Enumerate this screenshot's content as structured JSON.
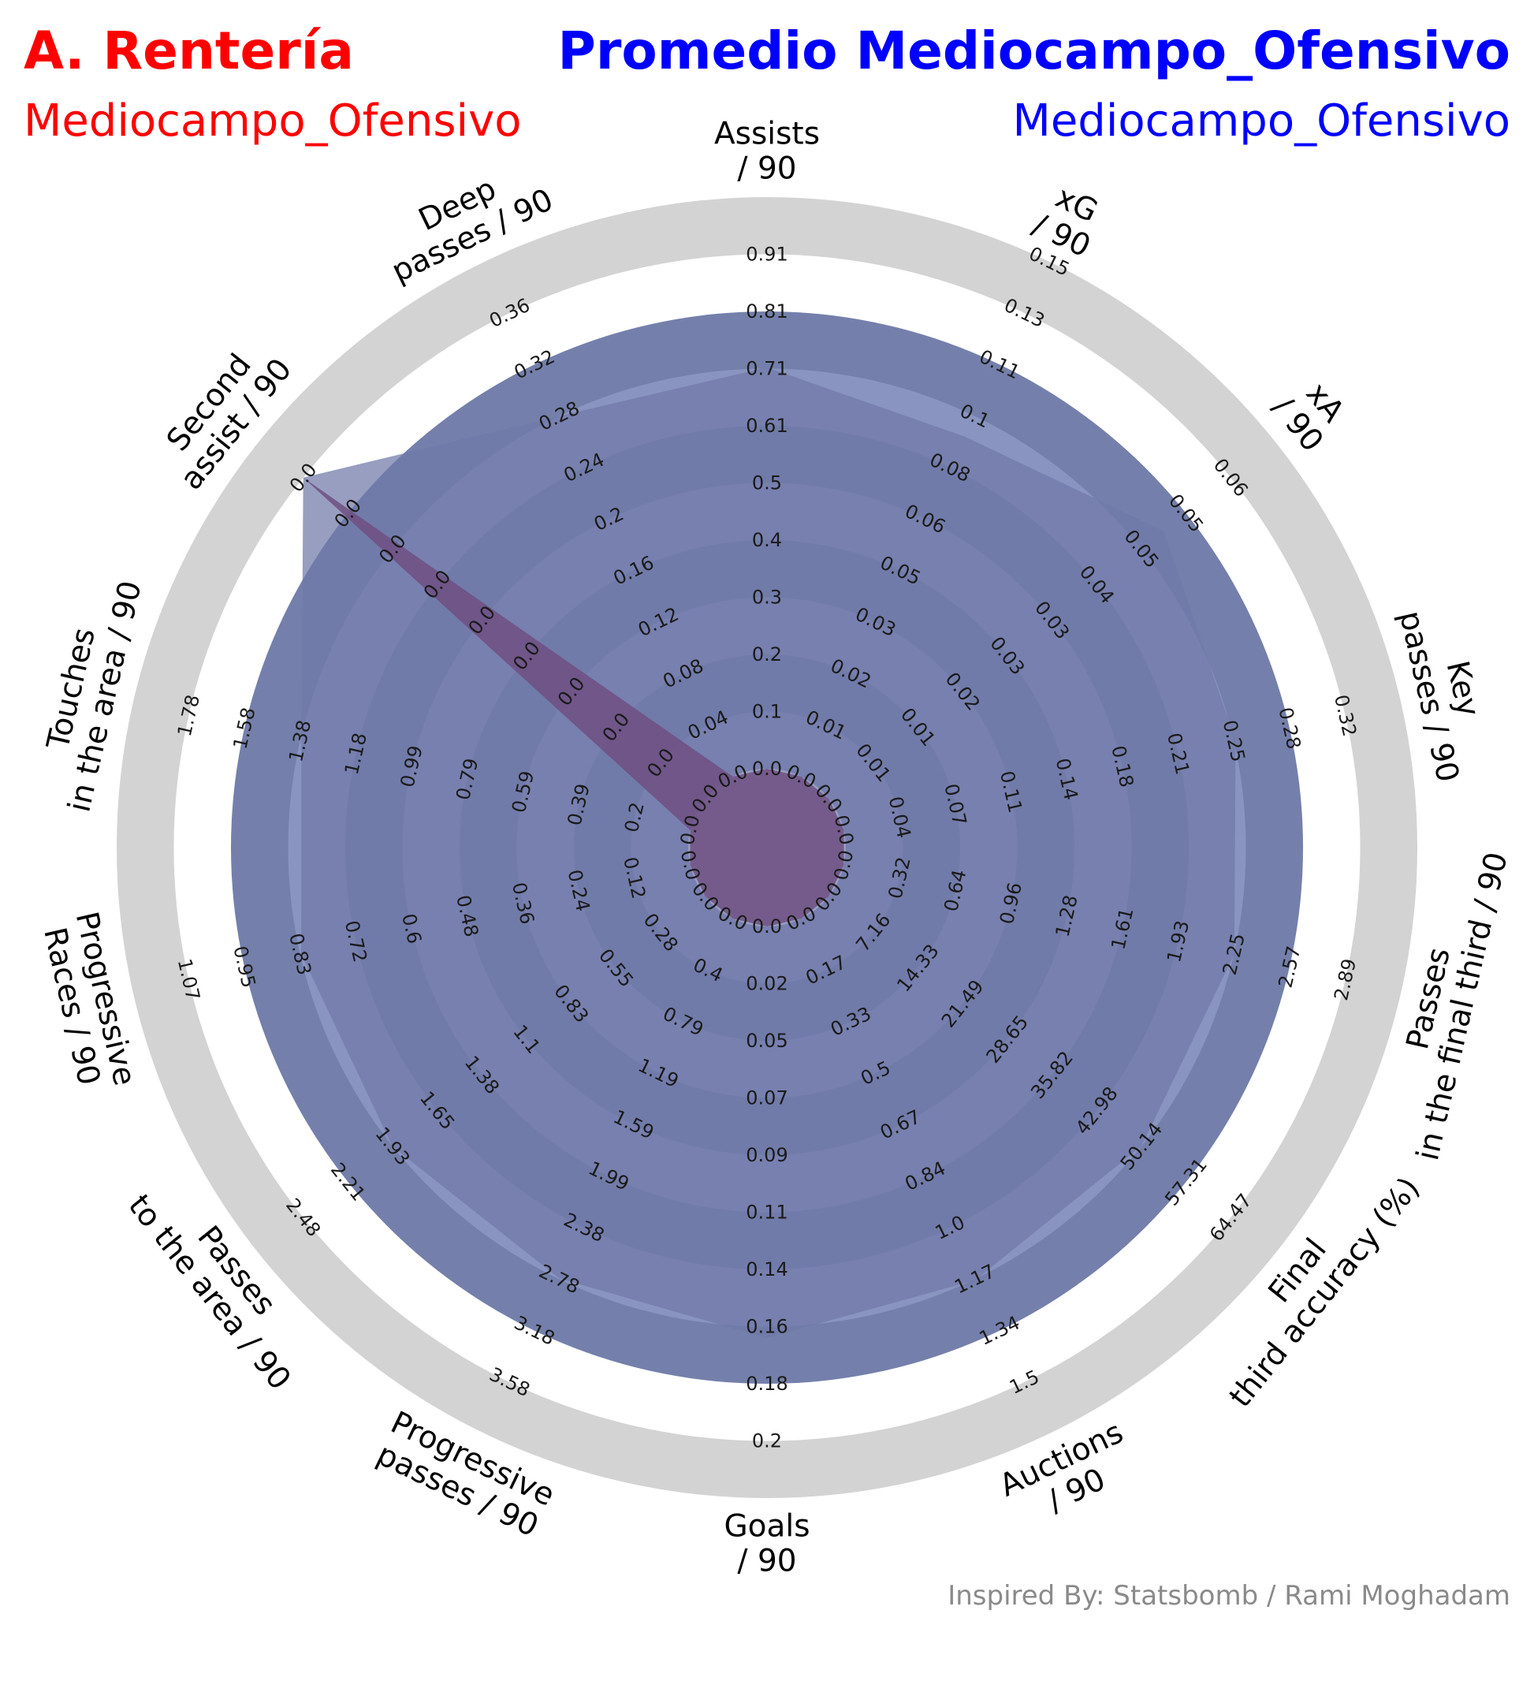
{
  "header": {
    "player_name": "A. Rentería",
    "player_position": "Mediocampo_Ofensivo",
    "comparison_name": "Promedio Mediocampo_Ofensivo",
    "comparison_position": "Mediocampo_Ofensivo"
  },
  "credit": "Inspired By: Statsbomb / Rami Moghadam",
  "colors": {
    "player": "#ff0000",
    "comparison": "#0000ff",
    "ring_outer": "#d3d3d3",
    "ring_a": "#7480ab",
    "ring_b": "#8995c0",
    "player_fill": "#6f4f83",
    "comparison_fill": "#7079a8"
  },
  "chart_data": {
    "type": "radar",
    "params": [
      {
        "label": [
          "Assists",
          "/ 90"
        ],
        "ticks": [
          "0.0",
          "0.1",
          "0.2",
          "0.3",
          "0.4",
          "0.5",
          "0.61",
          "0.71",
          "0.81",
          "0.91"
        ]
      },
      {
        "label": [
          "xG",
          "/ 90"
        ],
        "ticks": [
          "0.0",
          "0.01",
          "0.02",
          "0.03",
          "0.05",
          "0.06",
          "0.08",
          "0.1",
          "0.11",
          "0.13",
          "0.15"
        ]
      },
      {
        "label": [
          "xA",
          "/ 90"
        ],
        "ticks": [
          "0.0",
          "0.01",
          "0.01",
          "0.02",
          "0.03",
          "0.03",
          "0.04",
          "0.05",
          "0.05",
          "0.06"
        ]
      },
      {
        "label": [
          "Key",
          "passes / 90"
        ],
        "ticks": [
          "0.0",
          "0.04",
          "0.07",
          "0.11",
          "0.14",
          "0.18",
          "0.21",
          "0.25",
          "0.28",
          "0.32"
        ]
      },
      {
        "label": [
          "Passes",
          "in the final third / 90"
        ],
        "ticks": [
          "0.0",
          "0.32",
          "0.64",
          "0.96",
          "1.28",
          "1.61",
          "1.93",
          "2.25",
          "2.57",
          "2.89"
        ]
      },
      {
        "label": [
          "Final",
          "third accuracy (%)"
        ],
        "ticks": [
          "0.0",
          "7.16",
          "14.33",
          "21.49",
          "28.65",
          "35.82",
          "42.98",
          "50.14",
          "57.31",
          "64.47"
        ]
      },
      {
        "label": [
          "Auctions",
          "/ 90"
        ],
        "ticks": [
          "0.0",
          "0.17",
          "0.33",
          "0.5",
          "0.67",
          "0.84",
          "1.0",
          "1.17",
          "1.34",
          "1.5"
        ]
      },
      {
        "label": [
          "Goals",
          "/ 90"
        ],
        "ticks": [
          "0.0",
          "0.02",
          "0.05",
          "0.07",
          "0.09",
          "0.11",
          "0.14",
          "0.16",
          "0.18",
          "0.2"
        ]
      },
      {
        "label": [
          "Progressive",
          "passes / 90"
        ],
        "ticks": [
          "0.0",
          "0.4",
          "0.79",
          "1.19",
          "1.59",
          "1.99",
          "2.38",
          "2.78",
          "3.18",
          "3.58"
        ]
      },
      {
        "label": [
          "Passes",
          "to the area / 90"
        ],
        "ticks": [
          "0.0",
          "0.28",
          "0.55",
          "0.83",
          "1.1",
          "1.38",
          "1.65",
          "1.93",
          "2.21",
          "2.48"
        ]
      },
      {
        "label": [
          "Progressive",
          "Races / 90"
        ],
        "ticks": [
          "0.0",
          "0.12",
          "0.24",
          "0.36",
          "0.48",
          "0.6",
          "0.72",
          "0.83",
          "0.95",
          "1.07"
        ]
      },
      {
        "label": [
          "Touches",
          "in the area / 90"
        ],
        "ticks": [
          "0.0",
          "0.2",
          "0.39",
          "0.59",
          "0.79",
          "0.99",
          "1.18",
          "1.38",
          "1.58",
          "1.78"
        ]
      },
      {
        "label": [
          "Second",
          "assist / 90"
        ],
        "ticks": [
          "0.0",
          "0.0",
          "0.0",
          "0.0",
          "0.0",
          "0.0",
          "0.0",
          "0.0",
          "0.0",
          "0.0"
        ]
      },
      {
        "label": [
          "Deep",
          "passes / 90"
        ],
        "ticks": [
          "0.0",
          "0.04",
          "0.08",
          "0.12",
          "0.16",
          "0.2",
          "0.24",
          "0.28",
          "0.32",
          "0.36"
        ]
      }
    ],
    "series": [
      {
        "name": "A. Rentería",
        "values": [
          0,
          0,
          0,
          0,
          0,
          0,
          0,
          0,
          0,
          0,
          0,
          0,
          1,
          0
        ]
      },
      {
        "name": "Promedio Mediocampo_Ofensivo",
        "values": [
          0.71,
          0.11,
          0.05,
          0.25,
          2.25,
          50.14,
          1.17,
          0.16,
          2.78,
          1.93,
          0.83,
          1.38,
          1,
          0.28
        ]
      }
    ],
    "value_scale": "each axis spans its own tick range, from the first to the last tick label"
  }
}
